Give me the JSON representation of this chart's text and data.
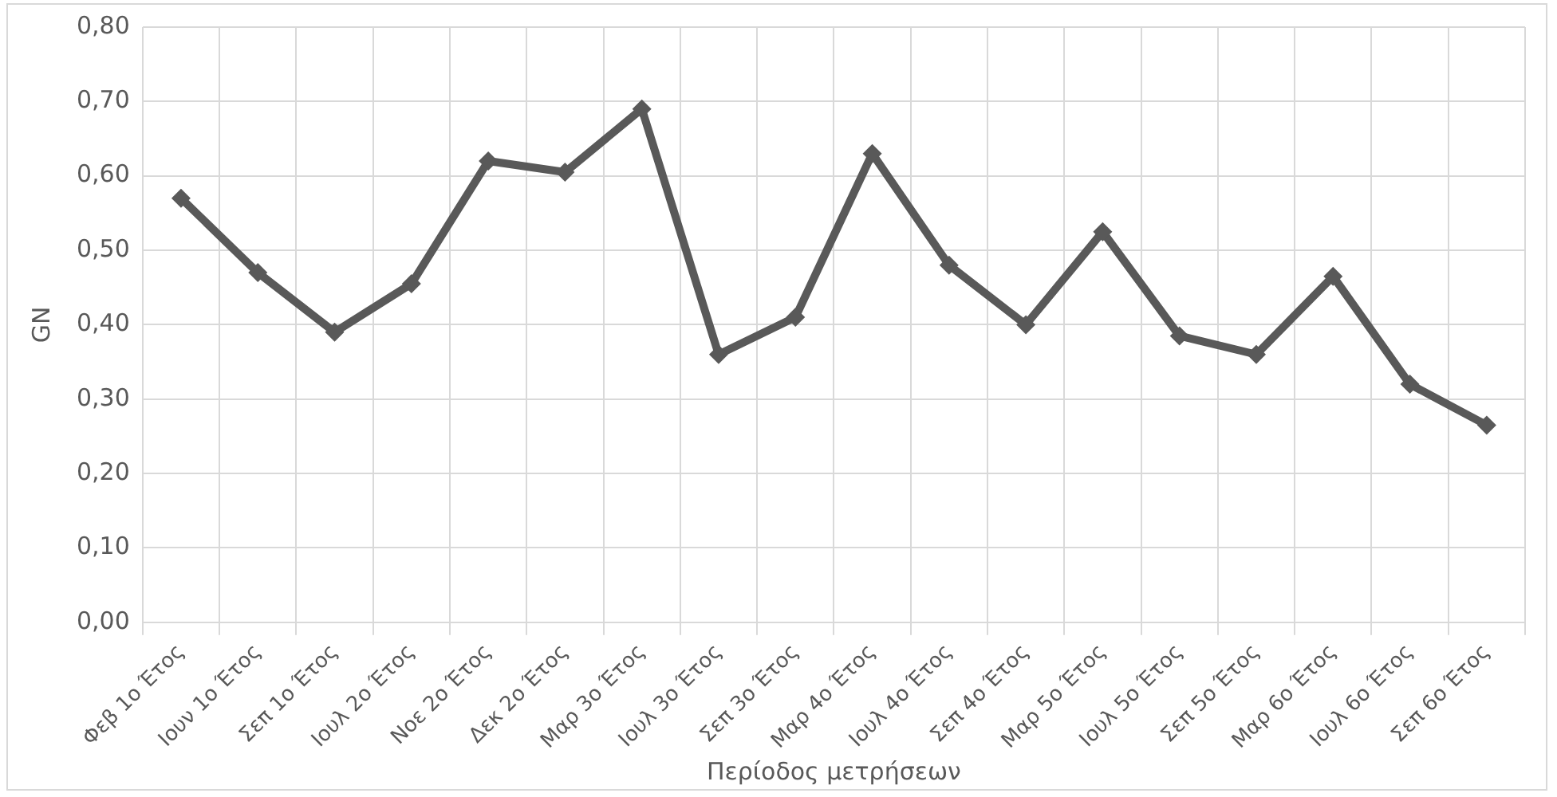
{
  "chart_data": {
    "type": "line",
    "xlabel": "Περίοδος μετρήσεων",
    "ylabel": "GN",
    "categories": [
      "Φεβ 1ο Έτος",
      "Ιουν 1ο Έτος",
      "Σεπ 1ο Έτος",
      "Ιουλ 2ο Έτος",
      "Νοε 2ο Έτος",
      "Δεκ 2ο Έτος",
      "Μαρ 3ο Έτος",
      "Ιουλ 3ο Έτος",
      "Σεπ 3ο Έτος",
      "Μαρ 4ο Έτος",
      "Ιουλ 4ο Έτος",
      "Σεπ 4ο Έτος",
      "Μαρ 5ο Έτος",
      "Ιουλ 5ο Έτος",
      "Σεπ 5ο Έτος",
      "Μαρ 6ο Έτος",
      "Ιουλ 6ο Έτος",
      "Σεπ 6ο Έτος"
    ],
    "series": [
      {
        "color": "#595959",
        "values": [
          0.57,
          0.47,
          0.39,
          0.455,
          0.62,
          0.605,
          0.69,
          0.36,
          0.41,
          0.63,
          0.48,
          0.4,
          0.525,
          0.385,
          0.36,
          0.465,
          0.32,
          0.265
        ]
      }
    ],
    "ylim": [
      0,
      0.8
    ],
    "yticks": [
      {
        "value": 0,
        "label": "0,00"
      },
      {
        "value": 0.1,
        "label": "0,10"
      },
      {
        "value": 0.2,
        "label": "0,20"
      },
      {
        "value": 0.3,
        "label": "0,30"
      },
      {
        "value": 0.4,
        "label": "0,40"
      },
      {
        "value": 0.5,
        "label": "0,50"
      },
      {
        "value": 0.6,
        "label": "0,60"
      },
      {
        "value": 0.7,
        "label": "0,70"
      },
      {
        "value": 0.8,
        "label": "0,80"
      }
    ],
    "grid": true,
    "legend": false,
    "marker": "diamond",
    "line_style": "solid"
  }
}
